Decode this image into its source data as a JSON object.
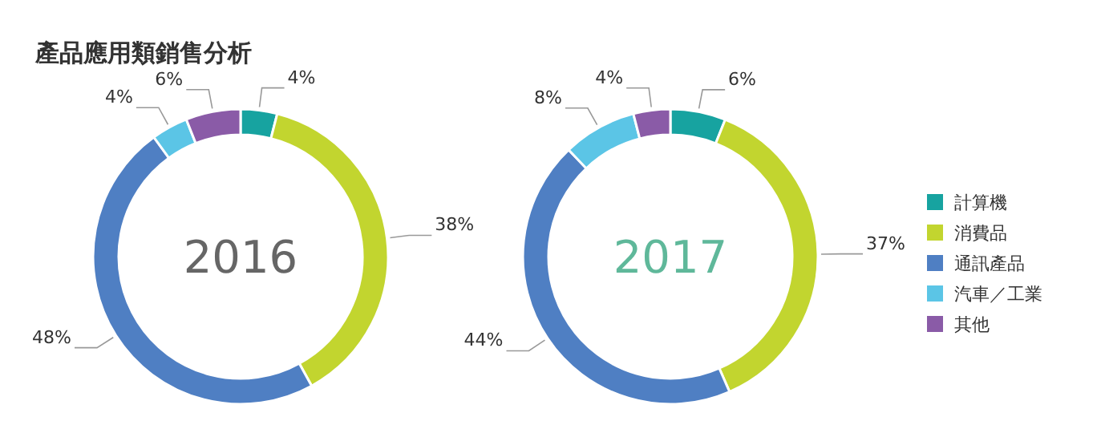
{
  "chart_data": [
    {
      "type": "donut",
      "title": "產品應用類銷售分析",
      "annotations": [
        "2016"
      ],
      "values": [
        4,
        38,
        48,
        4,
        6
      ],
      "value_labels": [
        "4%",
        "38%",
        "48%",
        "4%",
        "6%"
      ],
      "colors": [
        "#17a3a0",
        "#c2d52f",
        "#4f7fc3",
        "#5bc5e6",
        "#8a5ba7"
      ],
      "legend": false
    },
    {
      "type": "donut",
      "annotations": [
        "2017"
      ],
      "categories": [
        "計算機",
        "消費品",
        "通訊產品",
        "汽車／工業",
        "其他"
      ],
      "values": [
        6,
        37,
        44,
        8,
        4
      ],
      "value_labels": [
        "6%",
        "37%",
        "44%",
        "8%",
        "4%"
      ],
      "colors": [
        "#17a3a0",
        "#c2d52f",
        "#4f7fc3",
        "#5bc5e6",
        "#8a5ba7"
      ],
      "legend": "right"
    }
  ]
}
